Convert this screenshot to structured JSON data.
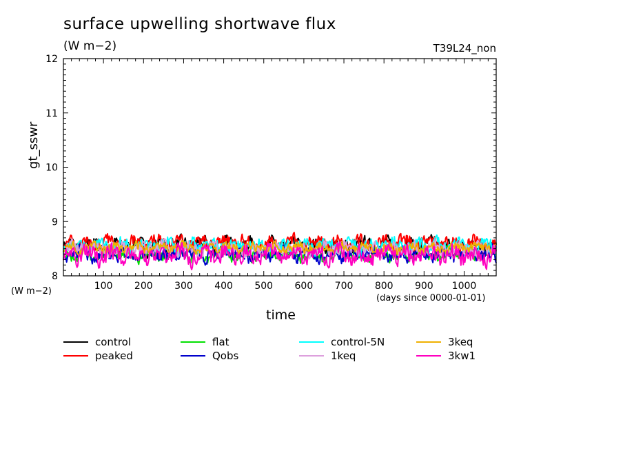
{
  "chart_data": {
    "type": "line",
    "title": "surface upwelling shortwave flux",
    "units": "(W m−2)",
    "run_label": "T39L24_non",
    "ylabel": "gt_sswr",
    "yunits_label": "(W m−2)",
    "xlabel": "time",
    "xunits_label": "(days since 0000-01-01)",
    "xlim": [
      0,
      1080
    ],
    "ylim": [
      8,
      12
    ],
    "x_ticks": [
      100,
      200,
      300,
      400,
      500,
      600,
      700,
      800,
      900,
      1000
    ],
    "y_ticks": [
      8,
      9,
      10,
      11,
      12
    ],
    "series": [
      {
        "name": "control",
        "color": "#000000",
        "mean": 8.55,
        "amplitude": 0.18
      },
      {
        "name": "peaked",
        "color": "#ff0000",
        "mean": 8.6,
        "amplitude": 0.18
      },
      {
        "name": "flat",
        "color": "#00e000",
        "mean": 8.38,
        "amplitude": 0.15
      },
      {
        "name": "Qobs",
        "color": "#0000cc",
        "mean": 8.4,
        "amplitude": 0.18
      },
      {
        "name": "control-5N",
        "color": "#00ffff",
        "mean": 8.55,
        "amplitude": 0.17
      },
      {
        "name": "1keq",
        "color": "#dda0dd",
        "mean": 8.5,
        "amplitude": 0.17
      },
      {
        "name": "3keq",
        "color": "#f0b000",
        "mean": 8.52,
        "amplitude": 0.12
      },
      {
        "name": "3kw1",
        "color": "#ff00c0",
        "mean": 8.38,
        "amplitude": 0.22
      }
    ]
  }
}
